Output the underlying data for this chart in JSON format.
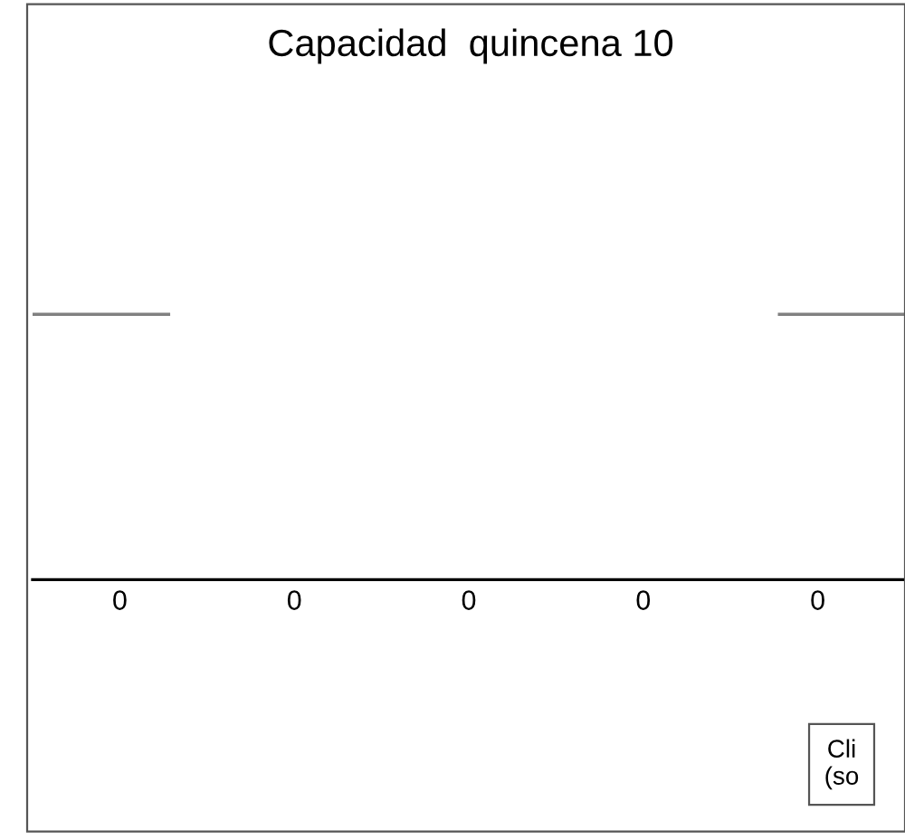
{
  "chart_data": {
    "type": "other",
    "title": "Capacidad  quincena 10",
    "data_labels": true,
    "categories": [
      null,
      null,
      null,
      null,
      null
    ],
    "values": [
      0,
      0,
      0,
      0,
      0
    ],
    "annotations": [
      "Cli\n(so"
    ]
  }
}
